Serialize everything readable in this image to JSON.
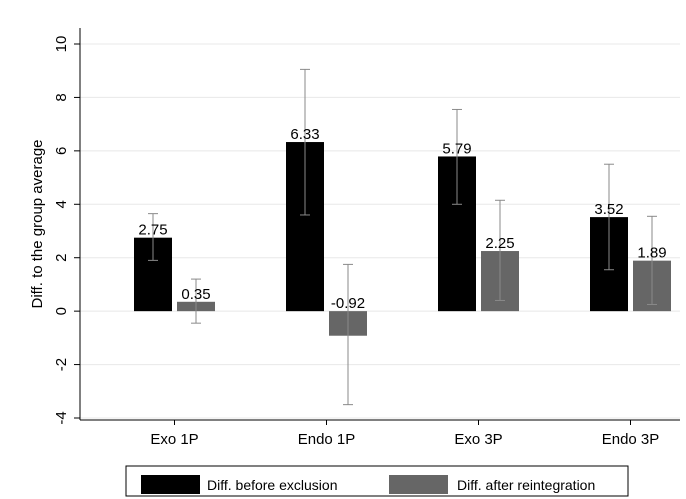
{
  "chart_data": {
    "type": "bar",
    "ylabel": "Diff. to the group average",
    "xlabel": "",
    "ylim": [
      -4,
      10
    ],
    "yticks": [
      -4,
      -2,
      0,
      2,
      4,
      6,
      8,
      10
    ],
    "ytick_labels": [
      "-4",
      "-2",
      "0",
      "2",
      "4",
      "6",
      "8",
      "10"
    ],
    "categories": [
      "Exo 1P",
      "Endo 1P",
      "Exo 3P",
      "Endo 3P"
    ],
    "series": [
      {
        "name": "Diff. before exclusion",
        "color": "#000000",
        "values": [
          2.75,
          6.33,
          5.79,
          3.52
        ],
        "labels": [
          "2.75",
          "6.33",
          "5.79",
          "3.52"
        ],
        "error_low": [
          1.9,
          3.6,
          4.0,
          1.55
        ],
        "error_high": [
          3.65,
          9.05,
          7.55,
          5.5
        ]
      },
      {
        "name": "Diff. after reintegration",
        "color": "#666666",
        "values": [
          0.35,
          -0.92,
          2.25,
          1.89
        ],
        "labels": [
          "0.35",
          "-0.92",
          "2.25",
          "1.89"
        ],
        "error_low": [
          -0.45,
          -3.5,
          0.4,
          0.25
        ],
        "error_high": [
          1.2,
          1.75,
          4.15,
          3.55
        ]
      }
    ],
    "legend_position": "bottom",
    "grid": "horizontal"
  }
}
